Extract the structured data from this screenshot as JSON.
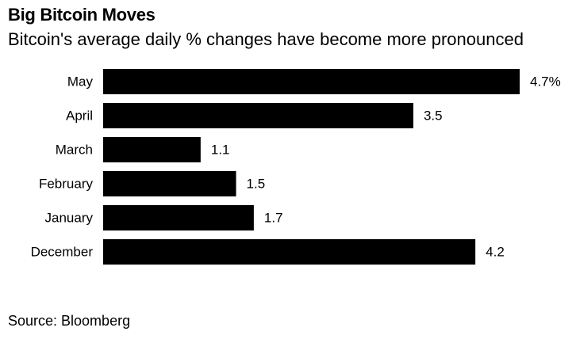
{
  "header": {
    "title": "Big Bitcoin Moves",
    "subtitle": "Bitcoin's average daily % changes have become more pronounced"
  },
  "footer": {
    "source": "Source: Bloomberg"
  },
  "chart_data": {
    "type": "bar",
    "orientation": "horizontal",
    "categories": [
      "May",
      "April",
      "March",
      "February",
      "January",
      "December"
    ],
    "values": [
      4.7,
      3.5,
      1.1,
      1.5,
      1.7,
      4.2
    ],
    "value_labels": [
      "4.7%",
      "3.5",
      "1.1",
      "1.5",
      "1.7",
      "4.2"
    ],
    "bar_color": "#000000",
    "xlim": [
      0,
      4.7
    ],
    "grid": false,
    "legend": "none"
  }
}
